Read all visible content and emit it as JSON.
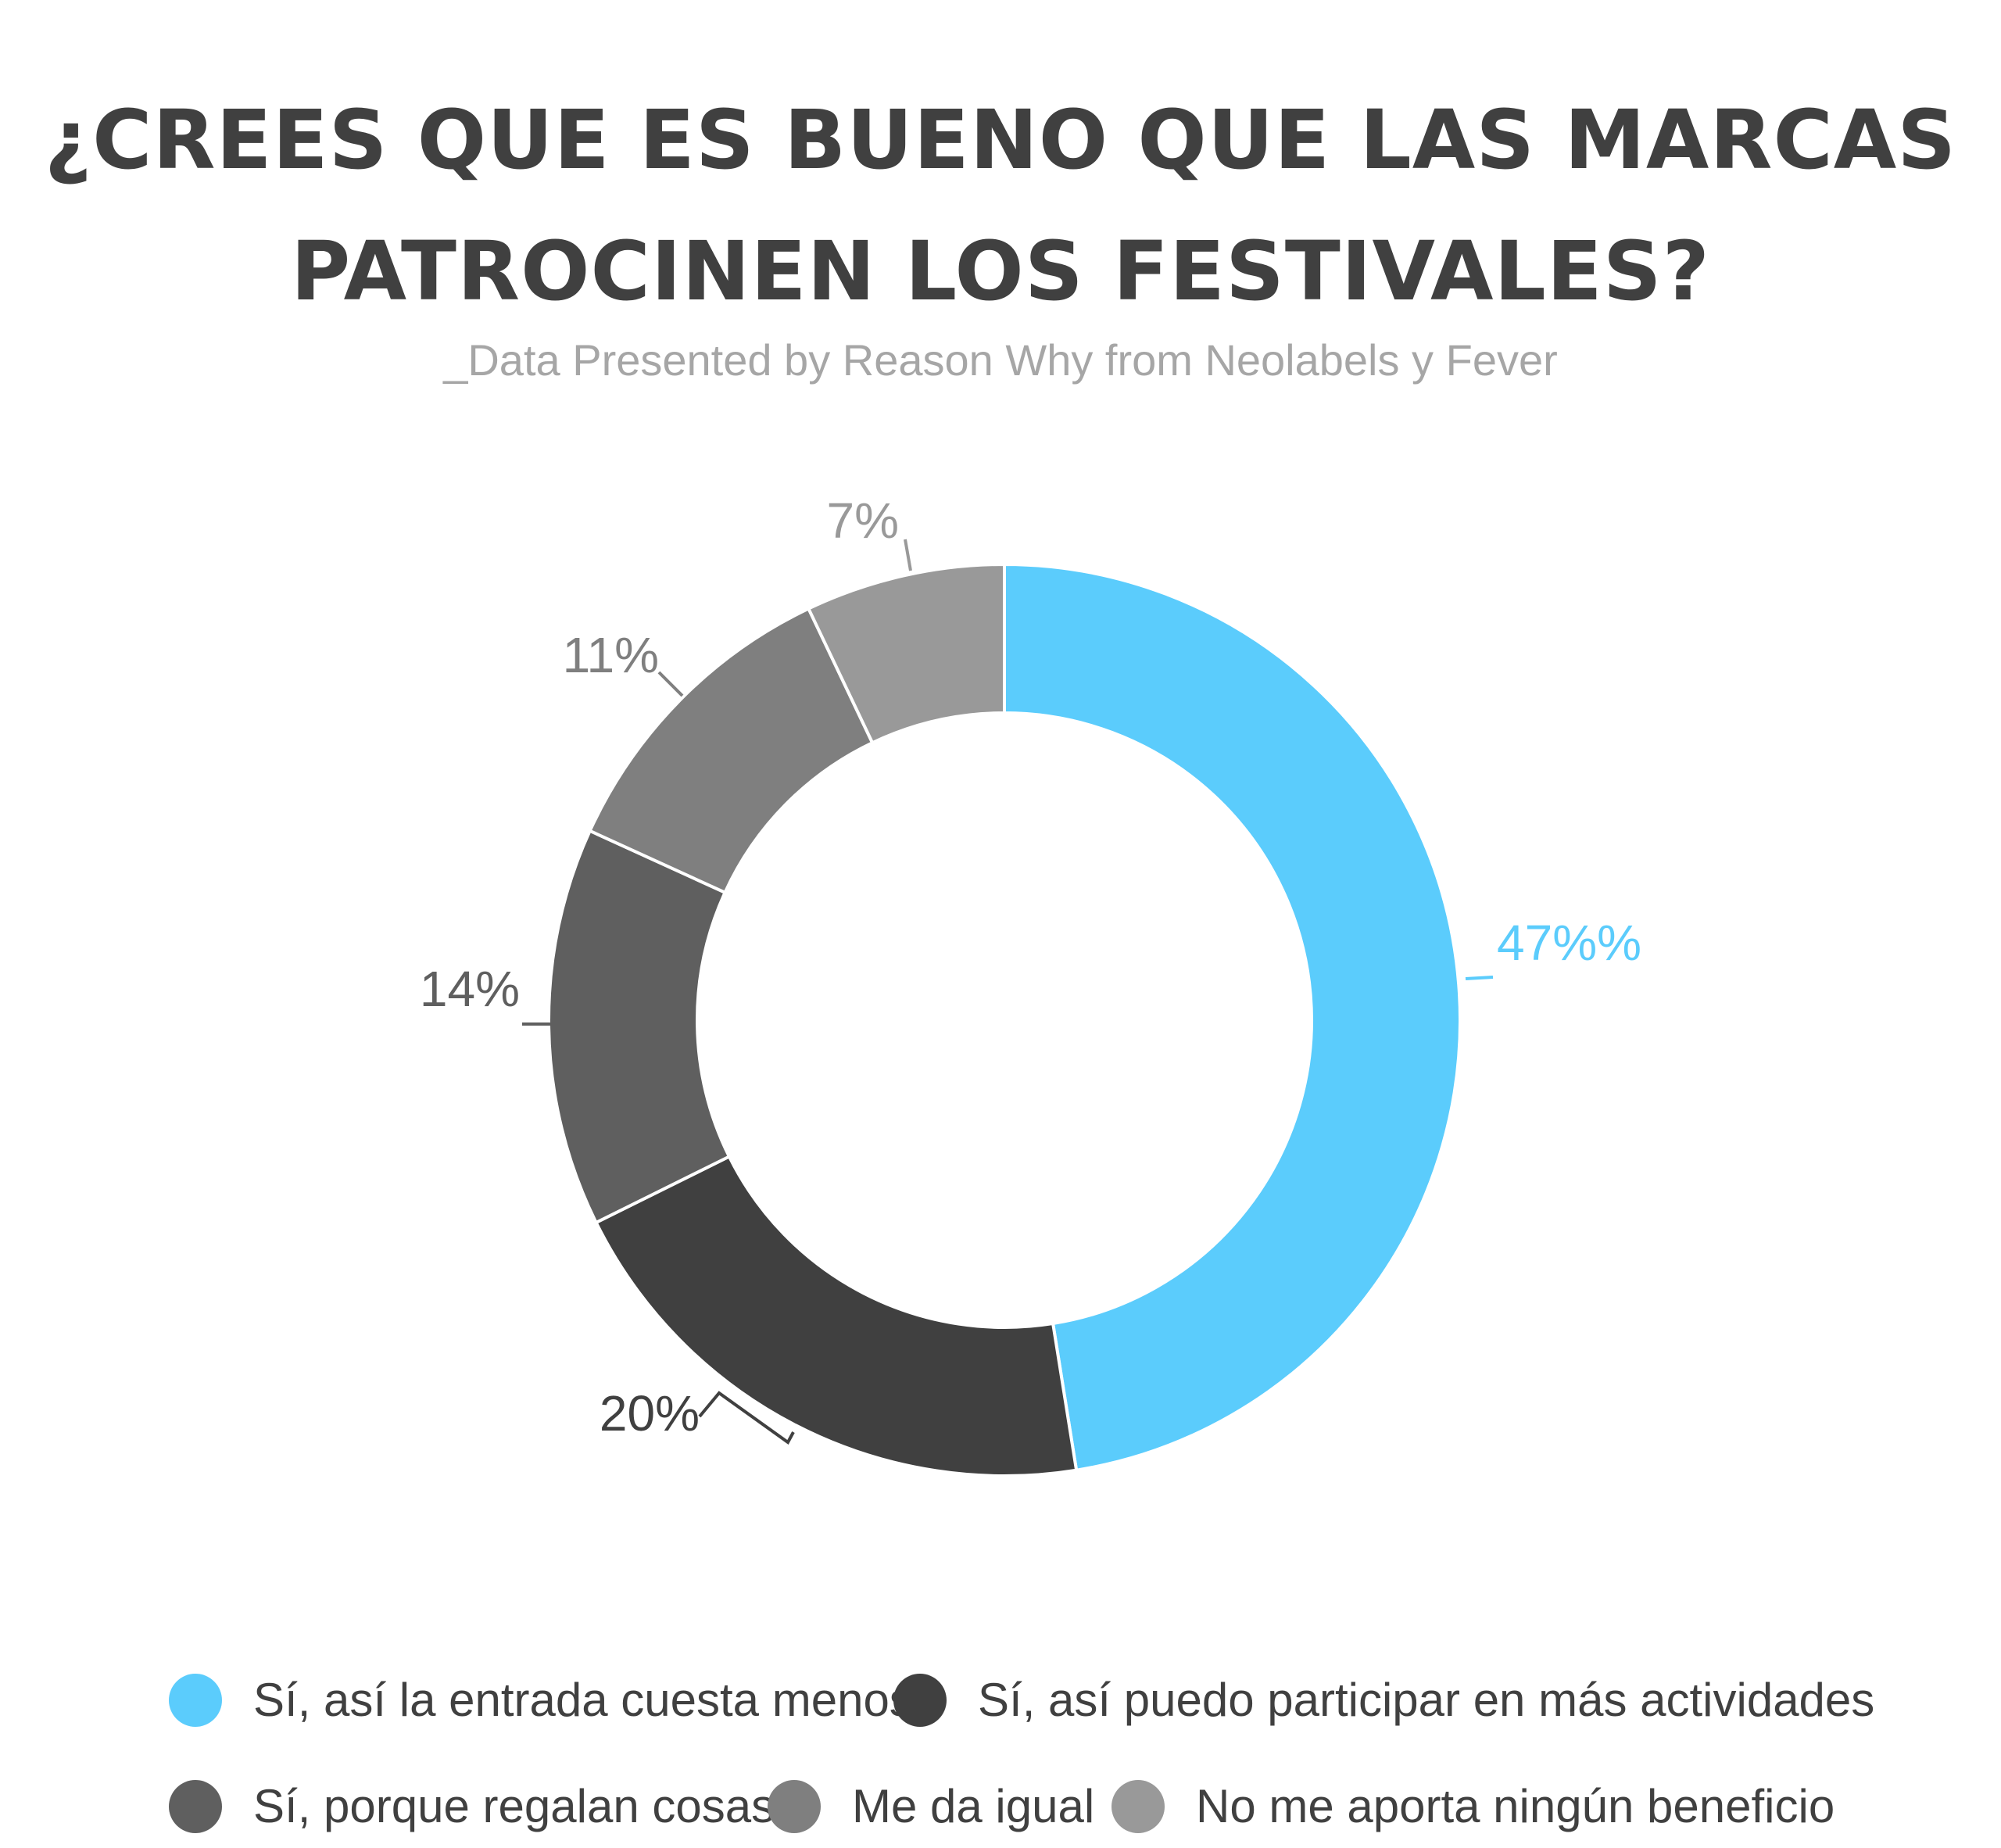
{
  "title": {
    "line1": "¿CREES QUE ES BUENO QUE LAS MARCAS",
    "line2": "PATROCINEN LOS FESTIVALES?"
  },
  "subtitle": "_Data Presented by Reason Why from Neolabels y Fever",
  "chart_data": {
    "type": "pie",
    "donut": true,
    "categories": [
      "Sí, así la entrada cuesta menos",
      "Sí, así puedo participar en más actividades",
      "Sí, porque regalan cosas",
      "Me da igual",
      "No me aporta ningún beneficio"
    ],
    "values": [
      47,
      20,
      14,
      11,
      7
    ],
    "data_labels": [
      "47%%",
      "20%",
      "14%",
      "11%",
      "7%"
    ],
    "colors": [
      "#5bccfc",
      "#404040",
      "#5f5f5f",
      "#7f7f7f",
      "#999999"
    ],
    "legend_position": "bottom"
  },
  "legend": [
    {
      "label": "Sí, así la entrada cuesta menos",
      "color": "#5bccfc"
    },
    {
      "label": "Sí, así puedo participar en más actividades",
      "color": "#404040"
    },
    {
      "label": "Sí, porque regalan cosas",
      "color": "#5f5f5f"
    },
    {
      "label": "Me da igual",
      "color": "#7f7f7f"
    },
    {
      "label": "No me aporta ningún beneficio",
      "color": "#999999"
    }
  ]
}
